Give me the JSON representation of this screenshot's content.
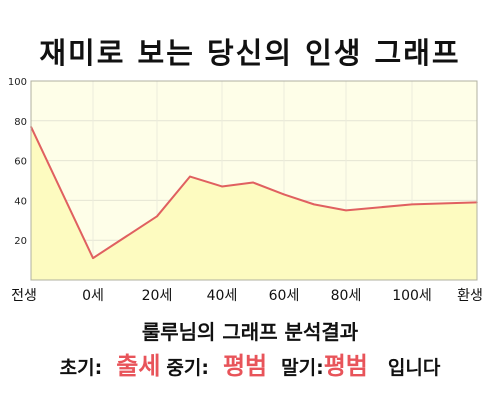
{
  "title": "재미로 보는 당신의 인생 그래프",
  "summary": "룰루님의 그래프 분석결과",
  "verdict": {
    "early_label": "초기:",
    "early_value": "출세",
    "middle_label": "중기:",
    "middle_value": "평범",
    "late_label": "말기:",
    "late_value": "평범",
    "ending": "입니다"
  },
  "colors": {
    "accent": "#e8545a",
    "line": "#e06060",
    "area": "#fdfbc0",
    "plot_bg": "#fefee8"
  },
  "chart_data": {
    "type": "area",
    "title": "",
    "xlabel": "",
    "ylabel": "",
    "x_tick_labels": [
      "전생",
      "0세",
      "20세",
      "40세",
      "60세",
      "80세",
      "100세",
      "환생"
    ],
    "y_ticks": [
      20,
      40,
      60,
      80,
      100
    ],
    "ylim": [
      0,
      100
    ],
    "grid": true,
    "series": [
      {
        "values": [
          {
            "x": "전생",
            "y": 77
          },
          {
            "x": "0세",
            "y": 11
          },
          {
            "x": "20세",
            "y": 32
          },
          {
            "x": "30세",
            "y": 52
          },
          {
            "x": "40세",
            "y": 47
          },
          {
            "x": "50세",
            "y": 49
          },
          {
            "x": "60세",
            "y": 43
          },
          {
            "x": "70세",
            "y": 38
          },
          {
            "x": "80세",
            "y": 35
          },
          {
            "x": "100세",
            "y": 38
          },
          {
            "x": "환생",
            "y": 39
          }
        ]
      }
    ]
  }
}
